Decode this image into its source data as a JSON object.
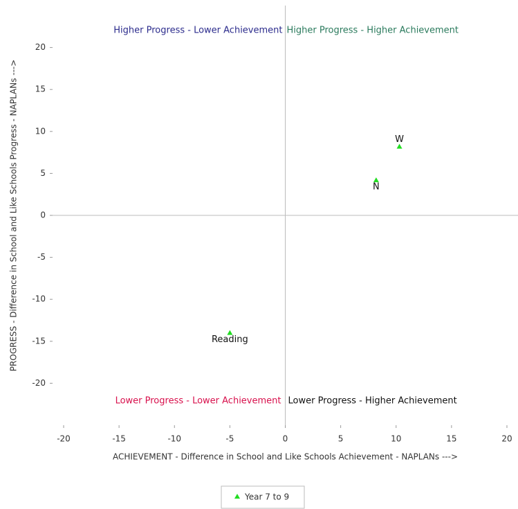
{
  "chart_data": {
    "type": "scatter",
    "x_label": "ACHIEVEMENT - Difference in School and Like Schools Achievement - NAPLANs  --->",
    "y_label": "PROGRESS - Difference in School and Like Schools Progress - NAPLANs  --->",
    "series": [
      {
        "name": "Year 7 to 9",
        "color": "#22dd22",
        "labels": [
          "W",
          "N",
          "Reading"
        ],
        "x": [
          10.3,
          8.2,
          -5
        ],
        "values": [
          8.2,
          4.2,
          -14
        ]
      }
    ],
    "annotations": [
      {
        "text": "Higher Progress - Lower Achievement",
        "color": "#2b2b8c"
      },
      {
        "text": "Higher Progress - Higher Achievement",
        "color": "#2a7a5c"
      },
      {
        "text": "Lower Progress - Lower Achievement",
        "color": "#d8104c"
      },
      {
        "text": "Lower Progress - Higher Achievement",
        "color": "#111111"
      }
    ],
    "xlim": [
      -21,
      21
    ],
    "ylim": [
      -25,
      25
    ],
    "xticks": [
      -20,
      -15,
      -10,
      -5,
      0,
      5,
      10,
      15,
      20
    ],
    "yticks": [
      -20,
      -15,
      -10,
      -5,
      0,
      5,
      10,
      15,
      20
    ],
    "legend": "bottom"
  }
}
